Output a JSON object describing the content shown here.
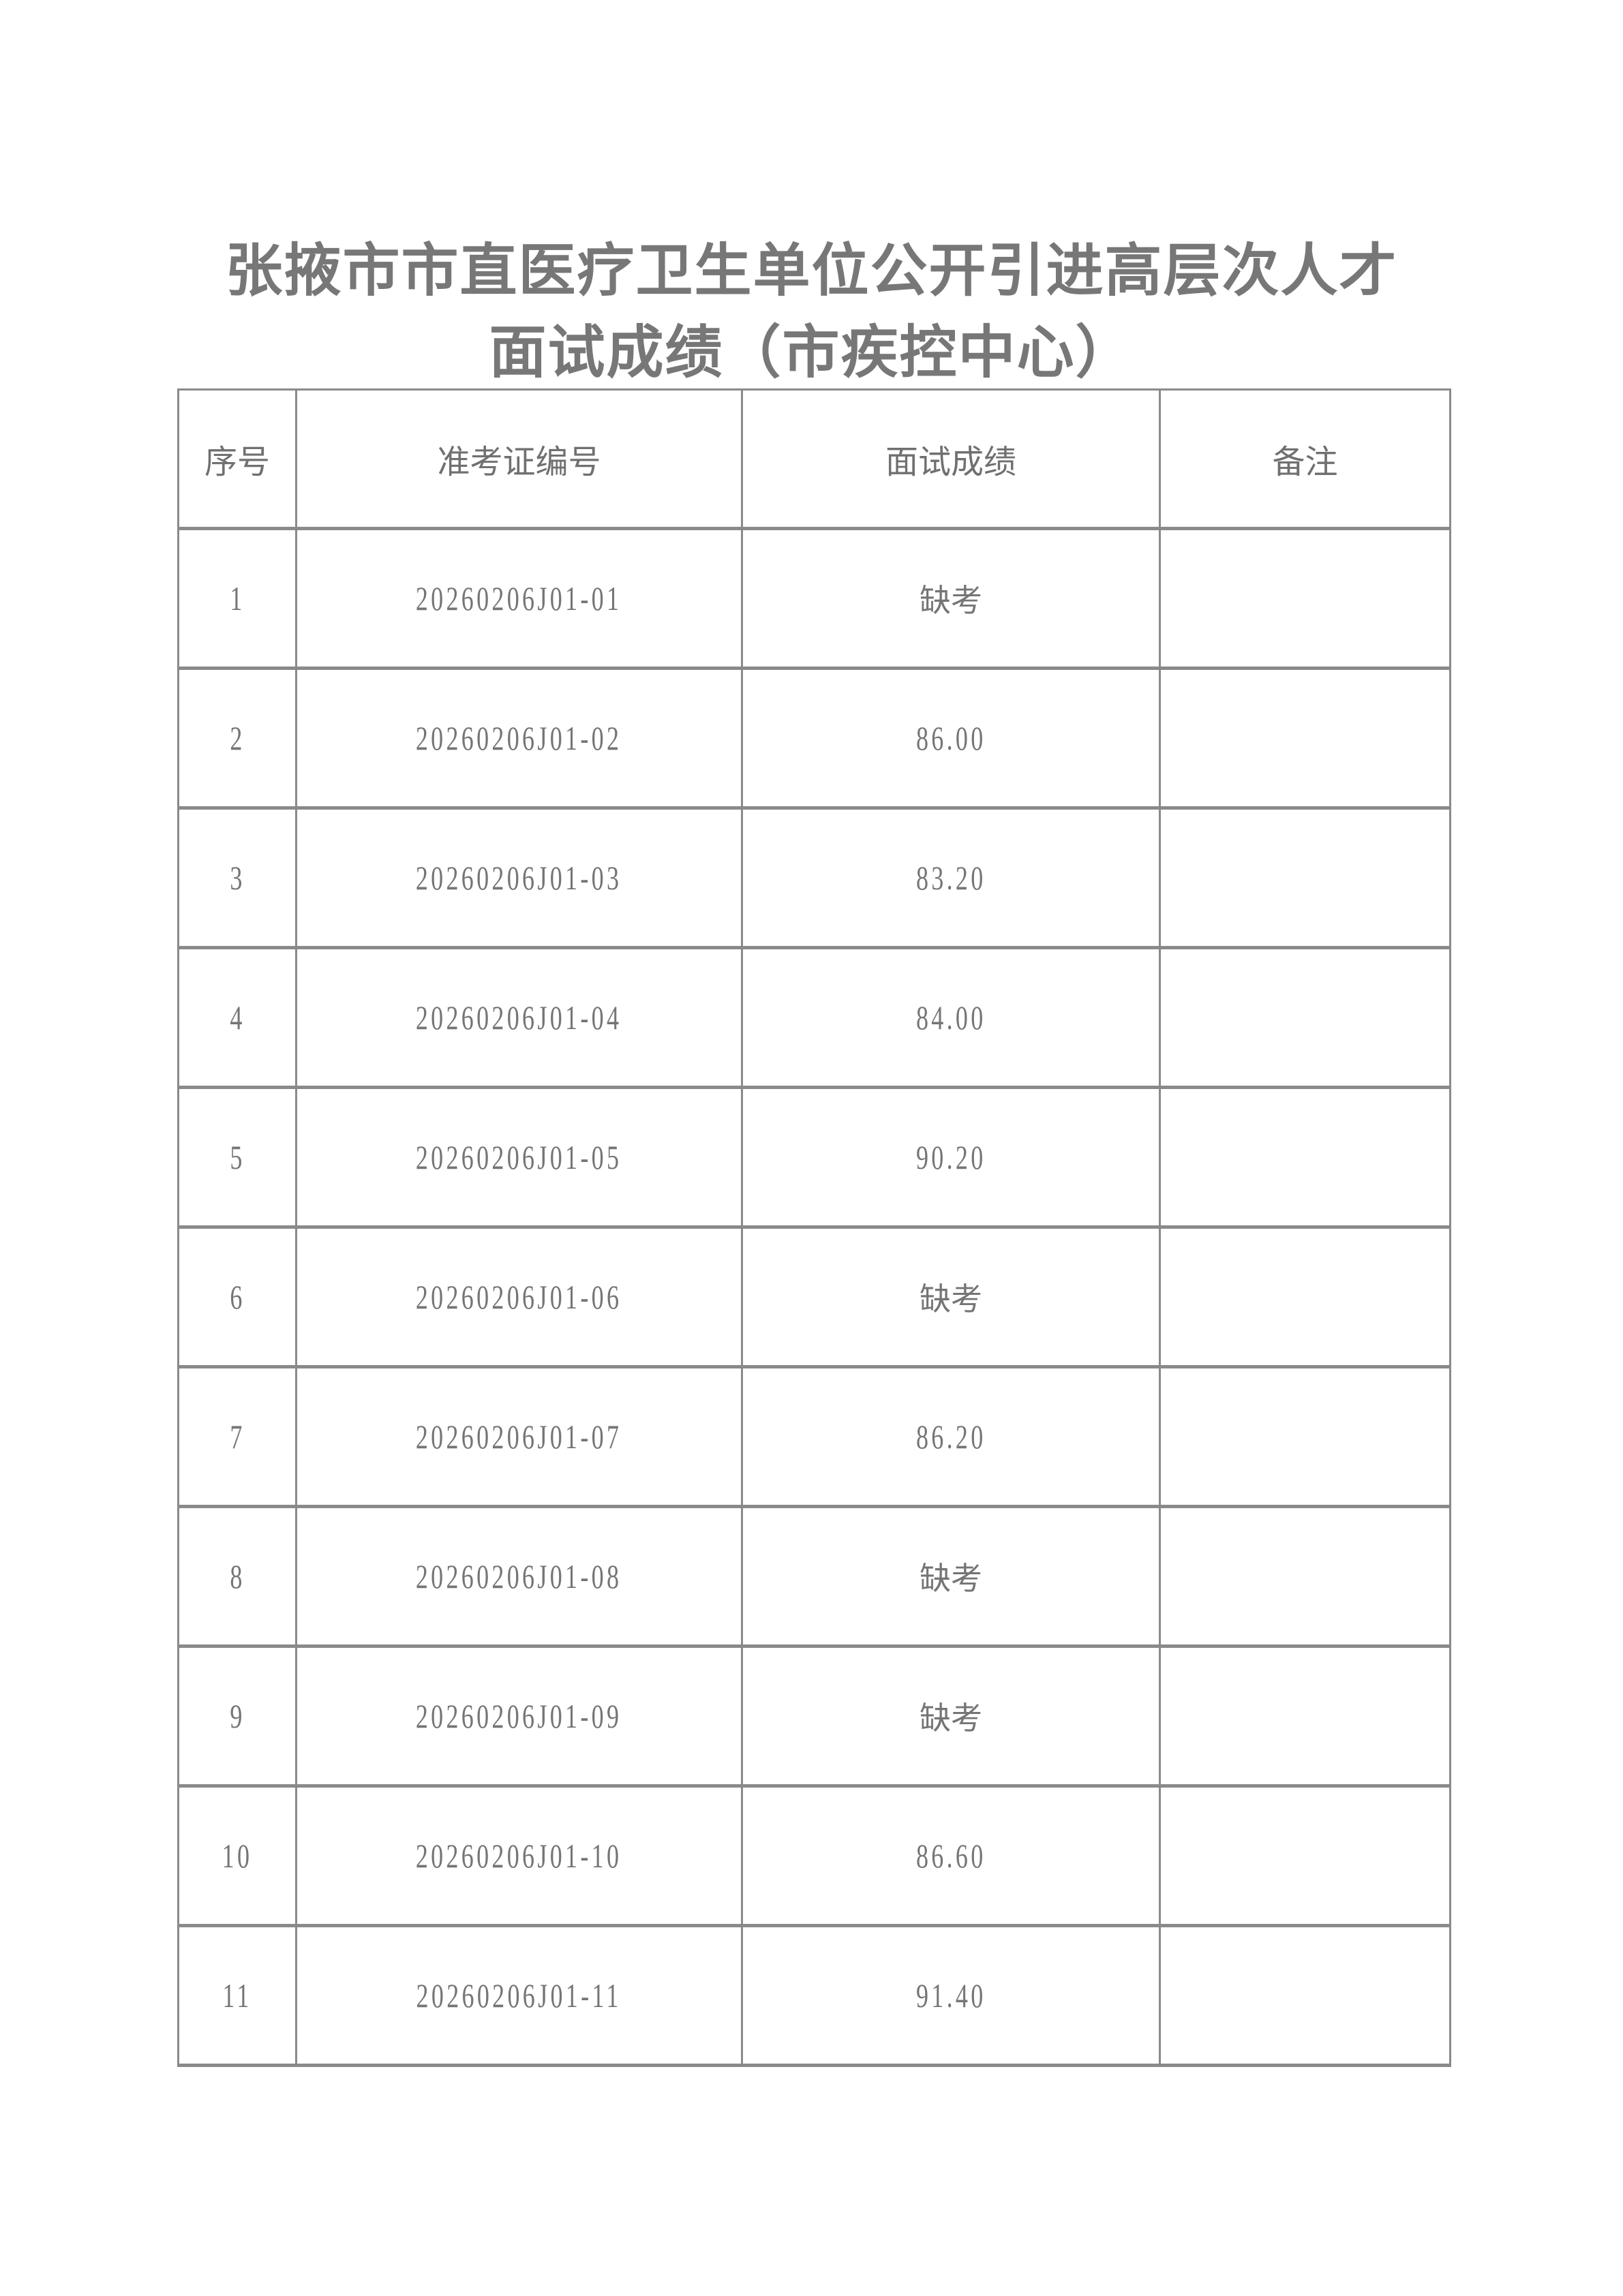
{
  "title": {
    "line1": "张掖市市直医疗卫生单位公开引进高层次人才",
    "line2": "面试成绩（市疾控中心）"
  },
  "table": {
    "headers": [
      "序号",
      "准考证编号",
      "面试成绩",
      "备注"
    ],
    "rows": [
      {
        "no": "1",
        "id": "20260206J01-01",
        "score": "缺考",
        "note": ""
      },
      {
        "no": "2",
        "id": "20260206J01-02",
        "score": "86.00",
        "note": ""
      },
      {
        "no": "3",
        "id": "20260206J01-03",
        "score": "83.20",
        "note": ""
      },
      {
        "no": "4",
        "id": "20260206J01-04",
        "score": "84.00",
        "note": ""
      },
      {
        "no": "5",
        "id": "20260206J01-05",
        "score": "90.20",
        "note": ""
      },
      {
        "no": "6",
        "id": "20260206J01-06",
        "score": "缺考",
        "note": ""
      },
      {
        "no": "7",
        "id": "20260206J01-07",
        "score": "86.20",
        "note": ""
      },
      {
        "no": "8",
        "id": "20260206J01-08",
        "score": "缺考",
        "note": ""
      },
      {
        "no": "9",
        "id": "20260206J01-09",
        "score": "缺考",
        "note": ""
      },
      {
        "no": "10",
        "id": "20260206J01-10",
        "score": "86.60",
        "note": ""
      },
      {
        "no": "11",
        "id": "20260206J01-11",
        "score": "91.40",
        "note": ""
      }
    ]
  }
}
